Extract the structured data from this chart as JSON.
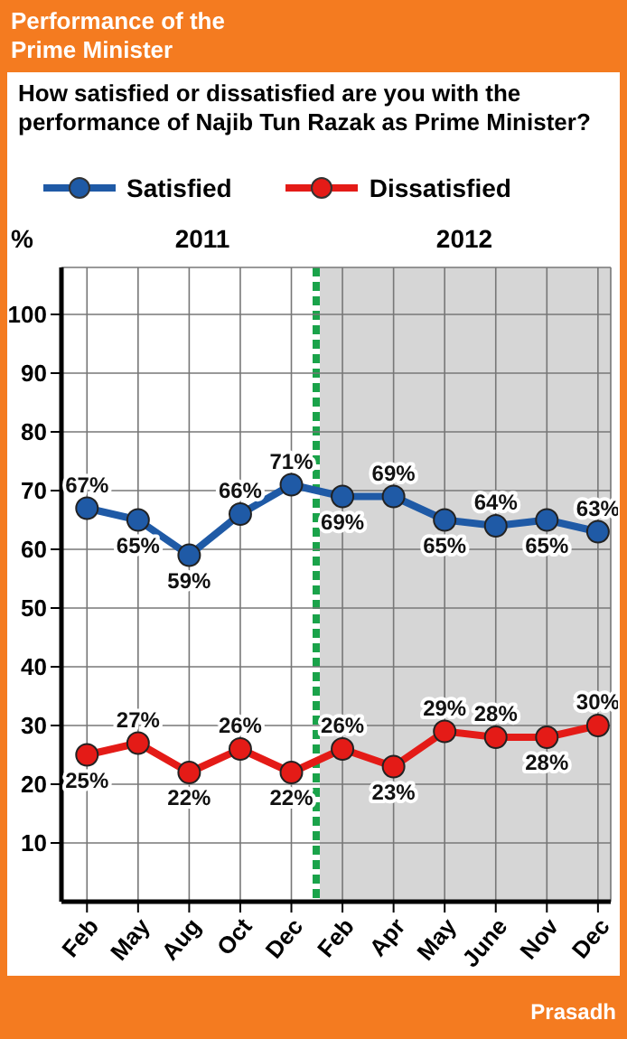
{
  "chart_data": {
    "type": "line",
    "title": "Performance of the Prime Minister",
    "subtitle": "How satisfied or dissatisfied are you with the performance of Najib Tun Razak as Prime Minister?",
    "ylabel": "%",
    "categories": [
      "Feb",
      "May",
      "Aug",
      "Oct",
      "Dec",
      "Feb",
      "Apr",
      "May",
      "June",
      "Nov",
      "Dec"
    ],
    "series": [
      {
        "name": "Satisfied",
        "color": "#1f5aa6",
        "values": [
          67,
          65,
          59,
          66,
          71,
          69,
          69,
          65,
          64,
          65,
          63
        ],
        "value_labels": [
          "67%",
          "65%",
          "59%",
          "66%",
          "71%",
          "69%",
          "69%",
          "65%",
          "64%",
          "65%",
          "63%"
        ]
      },
      {
        "name": "Dissatisfied",
        "color": "#e41b17",
        "values": [
          25,
          27,
          22,
          26,
          22,
          26,
          23,
          29,
          28,
          28,
          30
        ],
        "value_labels": [
          "25%",
          "27%",
          "22%",
          "26%",
          "22%",
          "26%",
          "23%",
          "29%",
          "28%",
          "28%",
          "30%"
        ]
      }
    ],
    "ylim": [
      0,
      108
    ],
    "yticks": [
      10,
      20,
      30,
      40,
      50,
      60,
      70,
      80,
      90,
      100
    ],
    "grid": true,
    "legend": "top",
    "marker": "circle",
    "line_style": "solid",
    "annotations": [
      "2011",
      "2012",
      "Prasadh"
    ]
  }
}
